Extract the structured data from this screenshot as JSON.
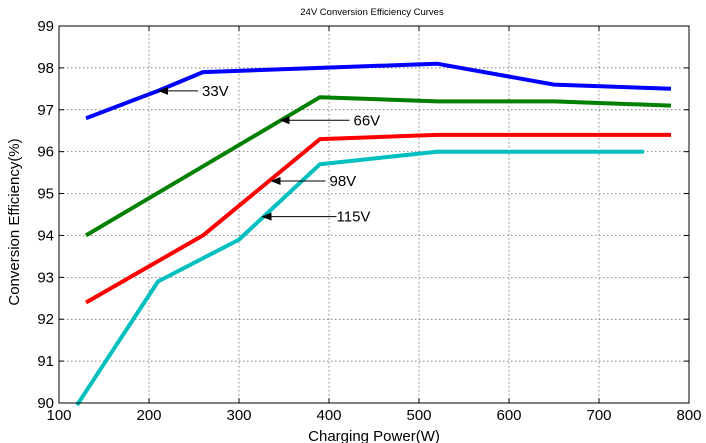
{
  "chart_data": {
    "type": "line",
    "title": "24V Conversion Efficiency Curves",
    "xlabel": "Charging Power(W)",
    "ylabel": "Conversion Efficiency(%)",
    "xlim": [
      100,
      800
    ],
    "ylim": [
      90,
      99
    ],
    "xticks": [
      100,
      200,
      300,
      400,
      500,
      600,
      700,
      800
    ],
    "yticks": [
      90,
      91,
      92,
      93,
      94,
      95,
      96,
      97,
      98,
      99
    ],
    "grid": true,
    "series": [
      {
        "name": "33V",
        "color": "#0000ff",
        "x": [
          130,
          210,
          260,
          390,
          520,
          650,
          780
        ],
        "y": [
          96.8,
          97.45,
          97.9,
          98.0,
          98.1,
          97.6,
          97.5
        ]
      },
      {
        "name": "66V",
        "color": "#008000",
        "x": [
          130,
          260,
          390,
          520,
          650,
          780
        ],
        "y": [
          94.0,
          95.65,
          97.3,
          97.2,
          97.2,
          97.1
        ]
      },
      {
        "name": "98V",
        "color": "#ff0000",
        "x": [
          130,
          260,
          390,
          520,
          650,
          780
        ],
        "y": [
          92.4,
          94.0,
          96.3,
          96.4,
          96.4,
          96.4
        ]
      },
      {
        "name": "115V",
        "color": "#00bfbf",
        "x": [
          120,
          210,
          300,
          390,
          520,
          650,
          750
        ],
        "y": [
          89.95,
          92.9,
          93.9,
          95.7,
          96.0,
          96.0,
          96.0
        ]
      }
    ],
    "annotations": [
      {
        "text": "33V",
        "series": "33V",
        "x": 210,
        "y": 97.45
      },
      {
        "text": "66V",
        "series": "66V",
        "x": 345,
        "y": 96.75
      },
      {
        "text": "98V",
        "series": "98V",
        "x": 335,
        "y": 95.3
      },
      {
        "text": "115V",
        "series": "115V",
        "x": 325,
        "y": 94.45
      }
    ]
  }
}
